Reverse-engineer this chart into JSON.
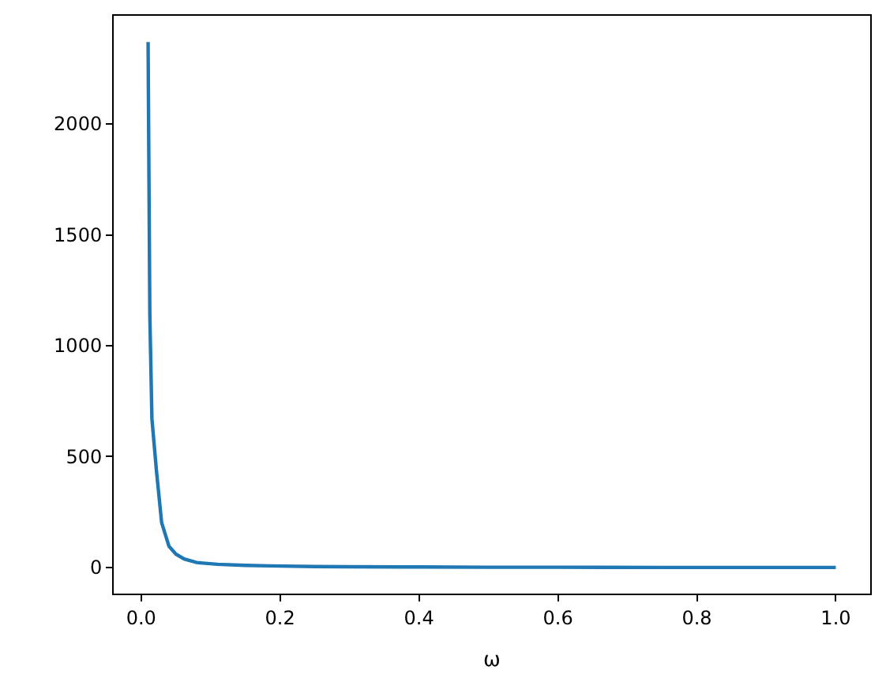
{
  "chart_data": {
    "type": "line",
    "xlabel": "ω",
    "series": [
      {
        "color": "#1f77b4",
        "x": [
          0.01,
          0.0125,
          0.0155,
          0.022,
          0.0295,
          0.04,
          0.05,
          0.062,
          0.08,
          0.11,
          0.15,
          0.185,
          0.25,
          0.3,
          0.4,
          0.5,
          0.6,
          0.75,
          0.9,
          1.0
        ],
        "values": [
          2370,
          1141,
          671,
          437,
          202,
          96,
          60,
          38,
          22,
          14,
          9,
          7,
          4,
          3,
          2,
          1,
          1,
          0,
          0,
          0
        ]
      }
    ],
    "xlim": [
      -0.0395,
      1.0495
    ],
    "ylim": [
      -118,
      2488
    ],
    "xticks": [
      {
        "value": 0,
        "label": "0.0"
      },
      {
        "value": 0.2,
        "label": "0.2"
      },
      {
        "value": 0.4,
        "label": "0.4"
      },
      {
        "value": 0.6,
        "label": "0.6"
      },
      {
        "value": 0.8,
        "label": "0.8"
      },
      {
        "value": 1.0,
        "label": "1.0"
      }
    ],
    "yticks": [
      0,
      500,
      1000,
      1500,
      2000
    ],
    "marker": "none",
    "line_style": "solid"
  }
}
